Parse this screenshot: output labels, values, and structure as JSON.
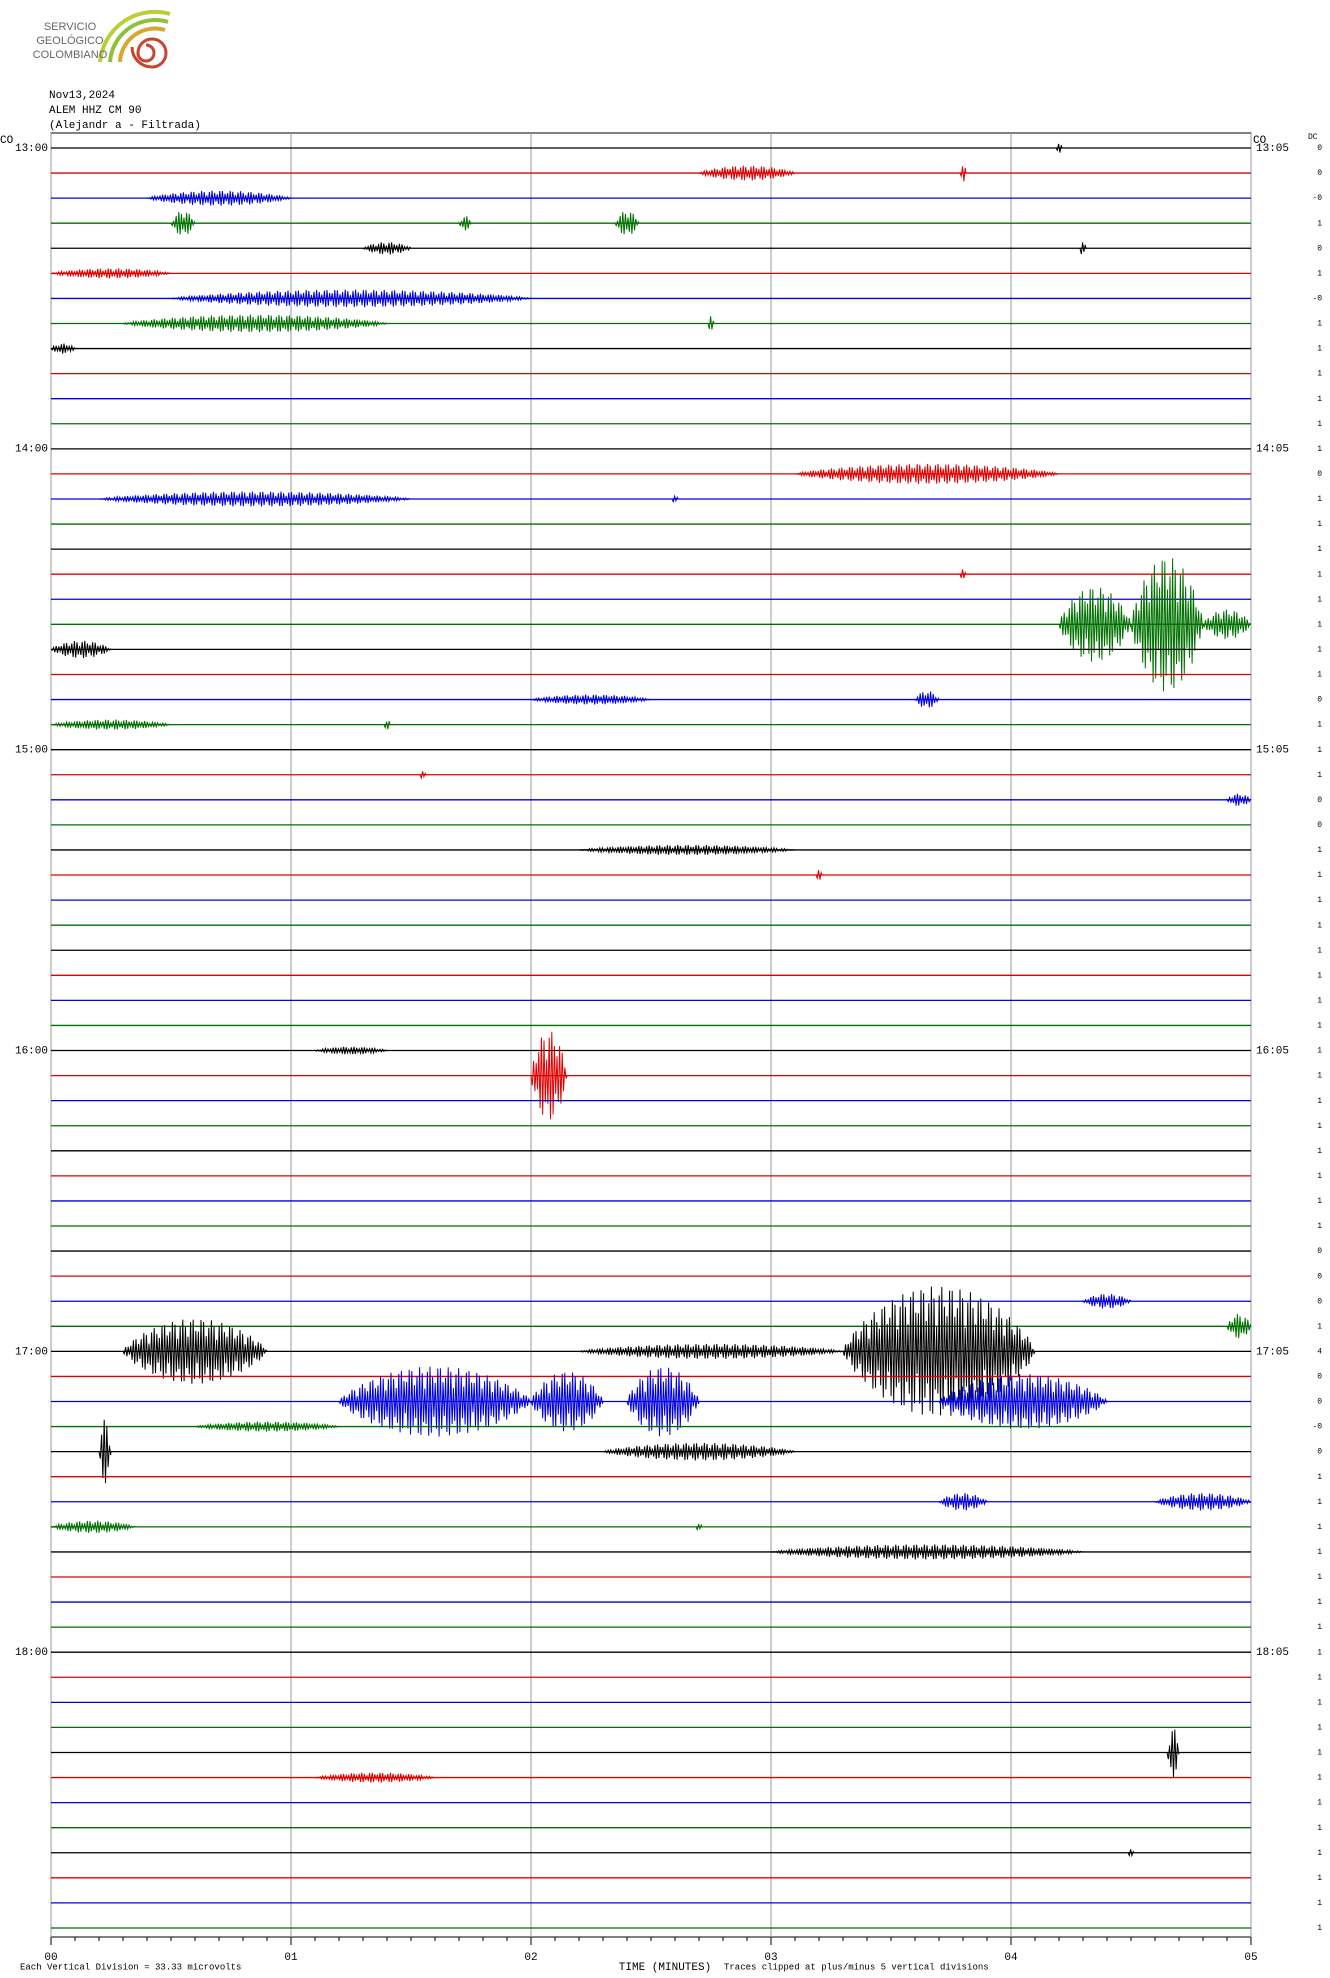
{
  "logo": {
    "lines": [
      "SERVICIO",
      "GEOLÓGICO",
      "COLOMBIANO"
    ]
  },
  "chart_data": {
    "type": "helicorder",
    "header": [
      "Nov13,2024",
      "ALEM HHZ CM 90",
      "(Alejandr  a - Filtrada)"
    ],
    "network_left": "CO",
    "network_right": "CO",
    "dc_label": "DC",
    "x_label": "TIME (MINUTES)",
    "scale_note": "Each Vertical Division =  33.33 microvolts",
    "clip_note": "Traces clipped at plus/minus 5 vertical divisions",
    "xlim": [
      0,
      5
    ],
    "xticks": [
      {
        "value": 0,
        "label": "00"
      },
      {
        "value": 1,
        "label": "01"
      },
      {
        "value": 2,
        "label": "02"
      },
      {
        "value": 3,
        "label": "03"
      },
      {
        "value": 4,
        "label": "04"
      },
      {
        "value": 5,
        "label": "05"
      }
    ],
    "colors": [
      "#000000",
      "#e00000",
      "#0000e0",
      "#007000"
    ],
    "left_labels": [
      "13:00",
      "14:00",
      "15:00",
      "16:00",
      "17:00",
      "18:00"
    ],
    "right_labels": [
      "13:05",
      "14:05",
      "15:05",
      "16:05",
      "17:05",
      "18:05"
    ],
    "dc_offsets": [
      "0",
      "0",
      "-0",
      "1",
      "0",
      "1",
      "-0",
      "1",
      "1",
      "1",
      "1",
      "1",
      "1",
      "0",
      "1",
      "1",
      "1",
      "1",
      "1",
      "1",
      "1",
      "1",
      "0",
      "1",
      "1",
      "1",
      "0",
      "0",
      "1",
      "1",
      "1",
      "1",
      "1",
      "1",
      "1",
      "1",
      "1",
      "1",
      "1",
      "1",
      "1",
      "1",
      "1",
      "1",
      "0",
      "0",
      "0",
      "1",
      "4",
      "0",
      "0",
      "-0",
      "0",
      "1",
      "1",
      "1",
      "1",
      "1",
      "1",
      "1",
      "1",
      "1",
      "1",
      "1",
      "1",
      "1",
      "1",
      "1",
      "1",
      "1",
      "1",
      "1"
    ],
    "bursts": {
      "0": [
        [
          4.2,
          4.2,
          0.2
        ]
      ],
      "1": [
        [
          2.7,
          3.1,
          0.3
        ],
        [
          3.8,
          3.8,
          0.4
        ]
      ],
      "2": [
        [
          0.4,
          1.0,
          0.3
        ]
      ],
      "3": [
        [
          0.5,
          0.6,
          0.5
        ],
        [
          1.7,
          1.75,
          0.3
        ],
        [
          2.35,
          2.45,
          0.5
        ]
      ],
      "4": [
        [
          1.3,
          1.5,
          0.25
        ],
        [
          4.3,
          4.3,
          0.4
        ]
      ],
      "5": [
        [
          0,
          0.5,
          0.2
        ]
      ],
      "6": [
        [
          0.5,
          2.0,
          0.35
        ]
      ],
      "7": [
        [
          0.3,
          1.4,
          0.35
        ],
        [
          2.75,
          2.75,
          0.3
        ]
      ],
      "8": [
        [
          0,
          0.1,
          0.2
        ]
      ],
      "13": [
        [
          3.1,
          4.2,
          0.4
        ]
      ],
      "14": [
        [
          0.2,
          1.5,
          0.3
        ],
        [
          2.6,
          2.6,
          0.2
        ]
      ],
      "17": [
        [
          3.8,
          3.8,
          0.2
        ]
      ],
      "19": [
        [
          4.2,
          4.5,
          1.5
        ],
        [
          4.5,
          4.8,
          2.7
        ],
        [
          4.8,
          5.0,
          0.6
        ]
      ],
      "20": [
        [
          0,
          0.25,
          0.35
        ]
      ],
      "22": [
        [
          2.0,
          2.5,
          0.2
        ],
        [
          3.6,
          3.7,
          0.35
        ]
      ],
      "23": [
        [
          0,
          0.5,
          0.2
        ],
        [
          1.4,
          1.4,
          0.3
        ]
      ],
      "25": [
        [
          1.55,
          1.55,
          0.2
        ]
      ],
      "26": [
        [
          4.9,
          5.0,
          0.25
        ]
      ],
      "28": [
        [
          2.2,
          3.1,
          0.2
        ]
      ],
      "29": [
        [
          3.2,
          3.2,
          0.2
        ]
      ],
      "36": [
        [
          1.1,
          1.4,
          0.15
        ]
      ],
      "37": [
        [
          2.0,
          2.15,
          1.8
        ]
      ],
      "46": [
        [
          4.3,
          4.5,
          0.3
        ]
      ],
      "47": [
        [
          4.9,
          5.0,
          0.5
        ]
      ],
      "48": [
        [
          0.3,
          0.9,
          1.3
        ],
        [
          2.2,
          3.3,
          0.3
        ],
        [
          3.3,
          4.1,
          2.6
        ]
      ],
      "50": [
        [
          1.2,
          2.0,
          1.4
        ],
        [
          2.0,
          2.3,
          1.2
        ],
        [
          2.4,
          2.7,
          1.4
        ],
        [
          3.7,
          4.4,
          1.1
        ]
      ],
      "51": [
        [
          0.6,
          1.2,
          0.2
        ]
      ],
      "52": [
        [
          0.2,
          0.25,
          1.3
        ],
        [
          2.3,
          3.1,
          0.35
        ]
      ],
      "54": [
        [
          3.7,
          3.9,
          0.35
        ],
        [
          4.6,
          5.0,
          0.35
        ]
      ],
      "55": [
        [
          0,
          0.35,
          0.25
        ],
        [
          2.7,
          2.7,
          0.2
        ]
      ],
      "56": [
        [
          3.0,
          4.3,
          0.3
        ]
      ],
      "64": [
        [
          4.65,
          4.7,
          1.0
        ]
      ],
      "65": [
        [
          1.1,
          1.6,
          0.2
        ]
      ],
      "68": [
        [
          4.5,
          4.5,
          0.15
        ]
      ]
    }
  }
}
